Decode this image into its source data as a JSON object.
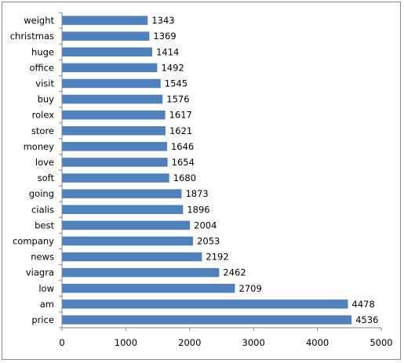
{
  "chart_data": {
    "type": "bar",
    "orientation": "horizontal",
    "categories": [
      "weight",
      "christmas",
      "huge",
      "office",
      "visit",
      "buy",
      "rolex",
      "store",
      "money",
      "love",
      "soft",
      "going",
      "cialis",
      "best",
      "company",
      "news",
      "viagra",
      "low",
      "am",
      "price"
    ],
    "values": [
      1343,
      1369,
      1414,
      1492,
      1545,
      1576,
      1617,
      1621,
      1646,
      1654,
      1680,
      1873,
      1896,
      2004,
      2053,
      2192,
      2462,
      2709,
      4478,
      4536
    ],
    "xlim": [
      0,
      5000
    ],
    "x_ticks": [
      0,
      1000,
      2000,
      3000,
      4000,
      5000
    ],
    "title": "",
    "xlabel": "",
    "ylabel": "",
    "grid": false,
    "legend": "none",
    "colors": {
      "bar": "#4f81bd",
      "axis": "#868686",
      "frame": "#8c8c8c"
    }
  }
}
